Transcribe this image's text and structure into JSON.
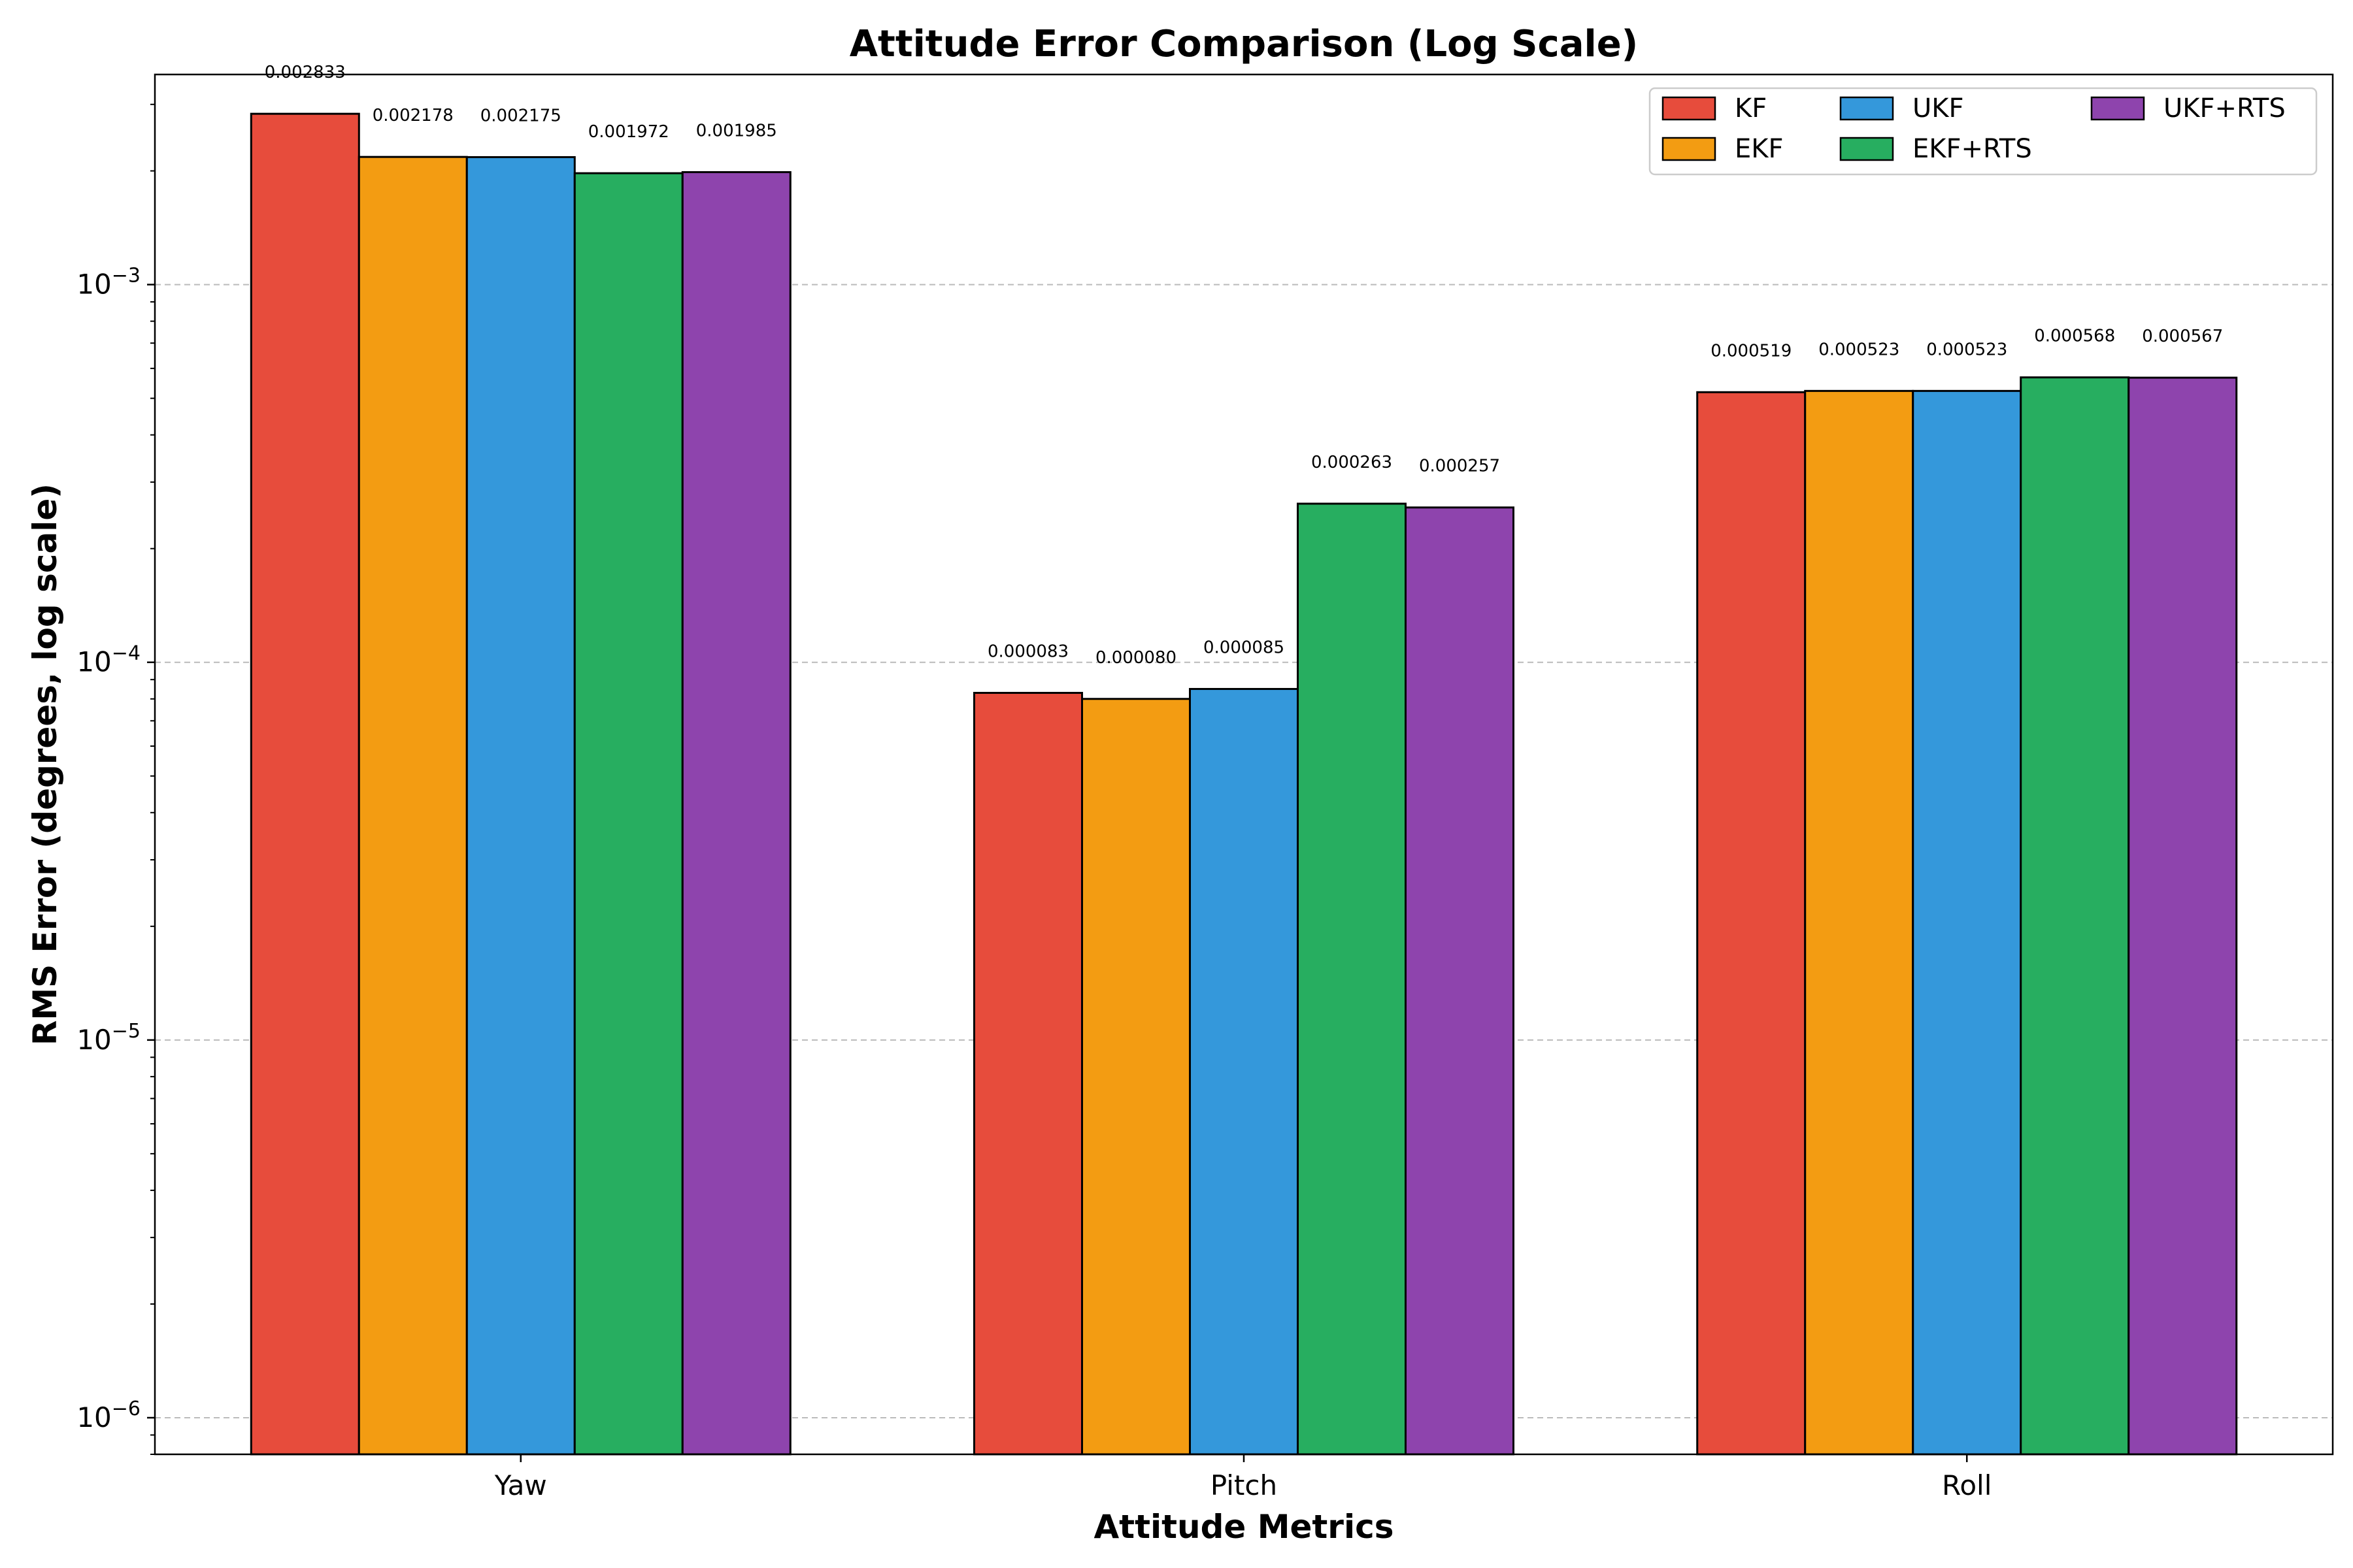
{
  "chart_data": {
    "type": "bar",
    "title": "Attitude Error Comparison (Log Scale)",
    "xlabel": "Attitude Metrics",
    "ylabel": "RMS Error (degrees, log scale)",
    "yscale": "log",
    "ylim": [
      8e-07,
      0.0036
    ],
    "yticks": [
      {
        "value": 1e-06,
        "base": "10",
        "exp": "−6"
      },
      {
        "value": 1e-05,
        "base": "10",
        "exp": "−5"
      },
      {
        "value": 0.0001,
        "base": "10",
        "exp": "−4"
      },
      {
        "value": 0.001,
        "base": "10",
        "exp": "−3"
      }
    ],
    "grid": "y-dashed",
    "legend_position": "top-right",
    "categories": [
      "Yaw",
      "Pitch",
      "Roll"
    ],
    "series": [
      {
        "name": "KF",
        "color": "#e74c3c",
        "values": [
          0.002833,
          8.3e-05,
          0.000519
        ],
        "labels": [
          "0.002833",
          "0.000083",
          "0.000519"
        ]
      },
      {
        "name": "EKF",
        "color": "#f39c12",
        "values": [
          0.002178,
          8e-05,
          0.000523
        ],
        "labels": [
          "0.002178",
          "0.000080",
          "0.000523"
        ]
      },
      {
        "name": "UKF",
        "color": "#3498db",
        "values": [
          0.002175,
          8.5e-05,
          0.000523
        ],
        "labels": [
          "0.002175",
          "0.000085",
          "0.000523"
        ]
      },
      {
        "name": "EKF+RTS",
        "color": "#27ae60",
        "values": [
          0.001972,
          0.000263,
          0.000568
        ],
        "labels": [
          "0.001972",
          "0.000263",
          "0.000568"
        ]
      },
      {
        "name": "UKF+RTS",
        "color": "#8e44ad",
        "values": [
          0.001985,
          0.000257,
          0.000567
        ],
        "labels": [
          "0.001985",
          "0.000257",
          "0.000567"
        ]
      }
    ]
  }
}
